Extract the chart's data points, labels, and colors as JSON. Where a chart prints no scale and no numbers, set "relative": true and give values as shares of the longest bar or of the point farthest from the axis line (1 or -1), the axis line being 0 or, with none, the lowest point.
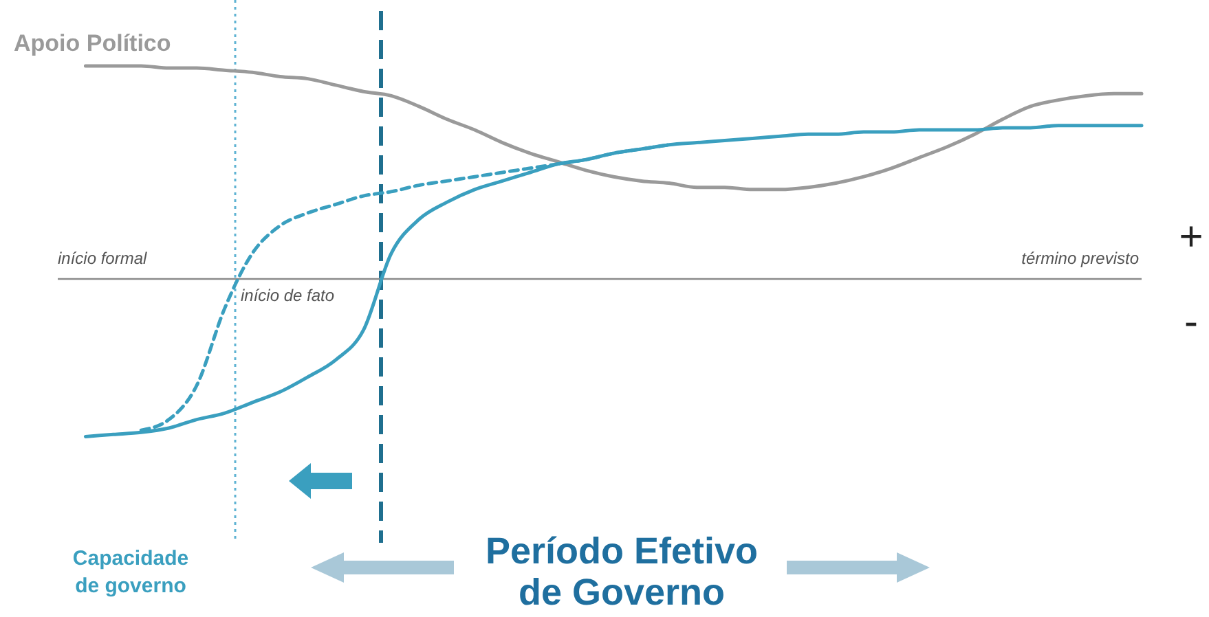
{
  "chart_data": {
    "type": "line",
    "relative": true,
    "categories": [
      null,
      null,
      null,
      null,
      null,
      null,
      null,
      null,
      null,
      null,
      null,
      null,
      null,
      null,
      null,
      null,
      null,
      null,
      null,
      null,
      null,
      null,
      null,
      null,
      null,
      null,
      null,
      null,
      null,
      null,
      null,
      null,
      null,
      null,
      null,
      null,
      null,
      null,
      null,
      null
    ],
    "series": [
      {
        "name": "Apoio Político",
        "color": "#9a9a9a",
        "values": [
          null,
          1.0,
          1.0,
          1.0,
          0.99,
          0.99,
          0.98,
          0.97,
          0.95,
          0.94,
          0.91,
          0.88,
          0.86,
          0.81,
          0.75,
          0.7,
          0.64,
          0.59,
          0.55,
          0.51,
          0.48,
          0.46,
          0.45,
          0.43,
          0.43,
          0.42,
          0.42,
          0.43,
          0.45,
          0.48,
          0.52,
          0.57,
          0.62,
          0.68,
          0.75,
          0.81,
          0.84,
          0.86,
          0.87,
          0.87
        ]
      },
      {
        "name": "Capacidade de governo",
        "color": "#3a9fbf",
        "values": [
          null,
          -0.74,
          -0.73,
          -0.72,
          -0.7,
          -0.66,
          -0.63,
          -0.58,
          -0.53,
          -0.46,
          -0.38,
          -0.24,
          0.12,
          0.28,
          0.36,
          0.42,
          0.46,
          0.5,
          0.54,
          0.56,
          0.59,
          0.61,
          0.63,
          0.64,
          0.65,
          0.66,
          0.67,
          0.68,
          0.68,
          0.69,
          0.69,
          0.7,
          0.7,
          0.7,
          0.71,
          0.71,
          0.72,
          0.72,
          0.72,
          0.72
        ]
      },
      {
        "color": "#3a9fbf",
        "line_style": "dashed",
        "values": [
          null,
          null,
          null,
          -0.71,
          -0.66,
          -0.5,
          -0.14,
          0.12,
          0.25,
          0.31,
          0.35,
          0.39,
          0.41,
          0.44,
          0.46,
          0.48,
          0.5,
          0.52,
          0.54,
          0.56,
          0.59,
          0.61,
          0.63,
          null,
          null,
          null,
          null,
          null,
          null,
          null,
          null,
          null,
          null,
          null,
          null,
          null,
          null,
          null,
          null,
          null
        ]
      }
    ],
    "annotations": [
      "início formal",
      "término previsto",
      "início de fato",
      "+",
      "-",
      "Período Efetivo de Governo"
    ]
  }
}
